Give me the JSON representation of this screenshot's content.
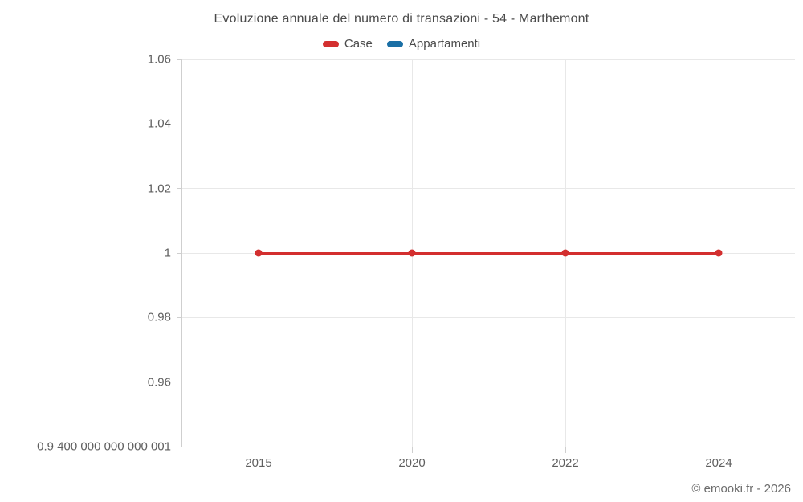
{
  "chart_data": {
    "type": "line",
    "title": "Evoluzione annuale del numero di transazioni - 54 - Marthemont",
    "categories": [
      "2015",
      "2020",
      "2022",
      "2024"
    ],
    "series": [
      {
        "name": "Case",
        "color": "#d32f2f",
        "values": [
          1,
          1,
          1,
          1
        ]
      },
      {
        "name": "Appartamenti",
        "color": "#1a6fa5",
        "values": []
      }
    ],
    "y_ticks": [
      {
        "label": "1.06",
        "value": 1.06
      },
      {
        "label": "1.04",
        "value": 1.04
      },
      {
        "label": "1.02",
        "value": 1.02
      },
      {
        "label": "1",
        "value": 1.0
      },
      {
        "label": "0.98",
        "value": 0.98
      },
      {
        "label": "0.96",
        "value": 0.96
      },
      {
        "label": "0.9 400 000 000 000 001",
        "value": 0.94
      }
    ],
    "ylim": [
      0.94,
      1.06
    ],
    "xlabel": "",
    "ylabel": "",
    "grid": true,
    "legend_position": "top",
    "credit": "© emooki.fr - 2026"
  }
}
